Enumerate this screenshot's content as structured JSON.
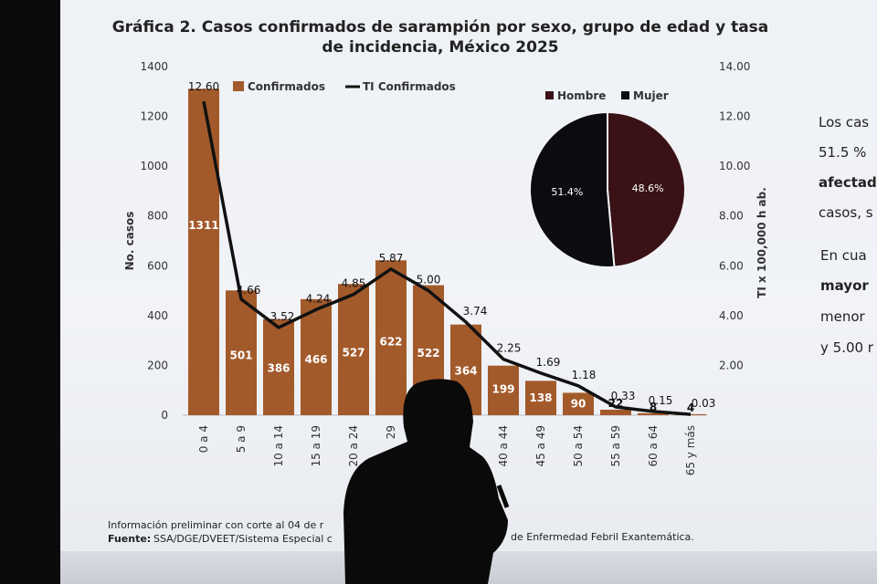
{
  "chart_data": {
    "type": "bar",
    "title_line1": "Gráfica 2. Casos confirmados de sarampión por sexo, grupo de edad y tasa",
    "title_line2": "de incidencia, México 2025",
    "ylabel": "No. casos",
    "y2label": "TI x 100,000 h ab.",
    "ylim": [
      0,
      1400
    ],
    "y2lim": [
      0,
      14
    ],
    "yticks": [
      "0",
      "200",
      "400",
      "600",
      "800",
      "1000",
      "1200",
      "1400"
    ],
    "y2ticks": [
      "2.00",
      "4.00",
      "6.00",
      "8.00",
      "10.00",
      "12.00",
      "14.00"
    ],
    "categories": [
      "0 a 4",
      "5 a 9",
      "10 a 14",
      "15 a 19",
      "20 a 24",
      "29",
      "",
      "",
      "40 a 44",
      "45 a 49",
      "50 a 54",
      "55 a 59",
      "60 a 64",
      "65 y más"
    ],
    "series": [
      {
        "name": "Confirmados",
        "kind": "bar",
        "color": "#a35a2b",
        "values": [
          1311,
          501,
          386,
          466,
          527,
          622,
          522,
          364,
          199,
          138,
          90,
          22,
          8,
          4
        ],
        "labels": [
          "1311",
          "501",
          "386",
          "466",
          "527",
          "622",
          "522",
          "364",
          "199",
          "138",
          "90",
          "22",
          "8",
          "4"
        ]
      },
      {
        "name": "TI Confirmados",
        "kind": "line",
        "color": "#111111",
        "values": [
          12.6,
          4.66,
          3.52,
          4.24,
          4.85,
          5.87,
          5.0,
          3.74,
          2.25,
          1.69,
          1.18,
          0.33,
          0.15,
          0.03
        ],
        "labels": [
          "12.60",
          "4.66",
          "3.52",
          "4.24",
          "4.85",
          "5.87",
          "5.00",
          "3.74",
          "2.25",
          "1.69",
          "1.18",
          "0.33",
          "0.15",
          "0.03"
        ]
      }
    ],
    "legend": {
      "position": "top-left",
      "items": [
        "Confirmados",
        "TI Confirmados"
      ]
    },
    "pie": {
      "type": "pie",
      "legend": [
        "Hombre",
        "Mujer"
      ],
      "slices": [
        {
          "name": "Hombre",
          "value": 48.6,
          "label": "48.6%",
          "color": "#3a1216"
        },
        {
          "name": "Mujer",
          "value": 51.4,
          "label": "51.4%",
          "color": "#0c0c10"
        }
      ]
    }
  },
  "footer": {
    "line1": "Información preliminar con corte al 04 de r",
    "line2_bold": "Fuente:",
    "line2_a": "SSA/DGE/DVEET/Sistema Especial c",
    "line2_b": "de Enfermedad Febril Exantemática."
  },
  "side_text": {
    "l1": "Los cas",
    "l2": "51.5 %",
    "l3": "afectad",
    "l4": "casos, s",
    "l5": "En cua",
    "l6": "mayor",
    "l7": "menor",
    "l8": "y 5.00 r"
  },
  "colors": {
    "bar": "#a35a2b",
    "line": "#111111",
    "screen": "#eef1f6"
  }
}
